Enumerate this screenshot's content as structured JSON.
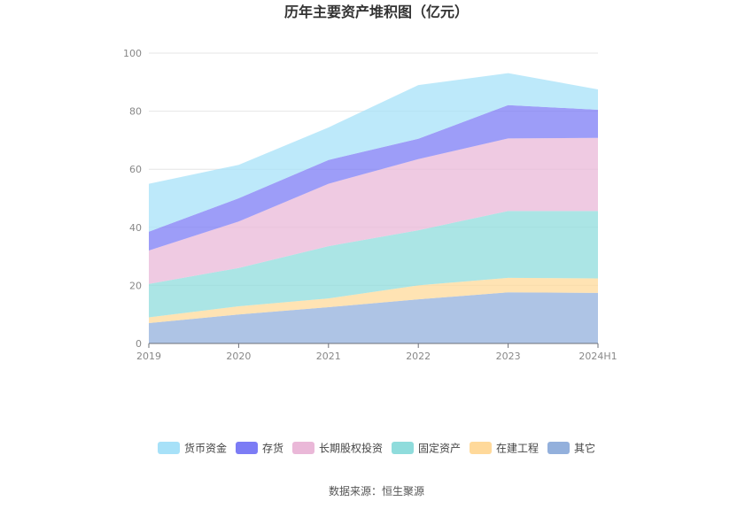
{
  "chart_data": {
    "type": "area",
    "stacked": true,
    "title": "历年主要资产堆积图（亿元）",
    "categories": [
      "2019",
      "2020",
      "2021",
      "2022",
      "2023",
      "2024H1"
    ],
    "ylim": [
      0,
      100
    ],
    "yticks": [
      0,
      20,
      40,
      60,
      80,
      100
    ],
    "grid": "horizontal",
    "legend_position": "bottom",
    "series": [
      {
        "name": "其它",
        "color": "#93b0dc",
        "values": [
          7.0,
          10.0,
          12.5,
          15.2,
          17.6,
          17.4
        ]
      },
      {
        "name": "在建工程",
        "color": "#ffd99a",
        "values": [
          2.0,
          2.8,
          3.0,
          4.8,
          5.0,
          5.0
        ]
      },
      {
        "name": "固定资产",
        "color": "#8fdcdc",
        "values": [
          11.5,
          13.2,
          18.0,
          19.0,
          23.0,
          23.2
        ]
      },
      {
        "name": "长期股权投资",
        "color": "#eab8d8",
        "values": [
          11.5,
          16.0,
          21.5,
          24.5,
          25.0,
          25.2
        ]
      },
      {
        "name": "存货",
        "color": "#7c7cf5",
        "values": [
          6.5,
          8.0,
          8.2,
          7.0,
          11.5,
          9.7
        ]
      },
      {
        "name": "货币资金",
        "color": "#a7e1f8",
        "values": [
          16.5,
          11.5,
          11.2,
          18.5,
          11.0,
          7.0
        ]
      }
    ],
    "legend_order": [
      "货币资金",
      "存货",
      "长期股权投资",
      "固定资产",
      "在建工程",
      "其它"
    ]
  },
  "source": "数据来源：恒生聚源"
}
